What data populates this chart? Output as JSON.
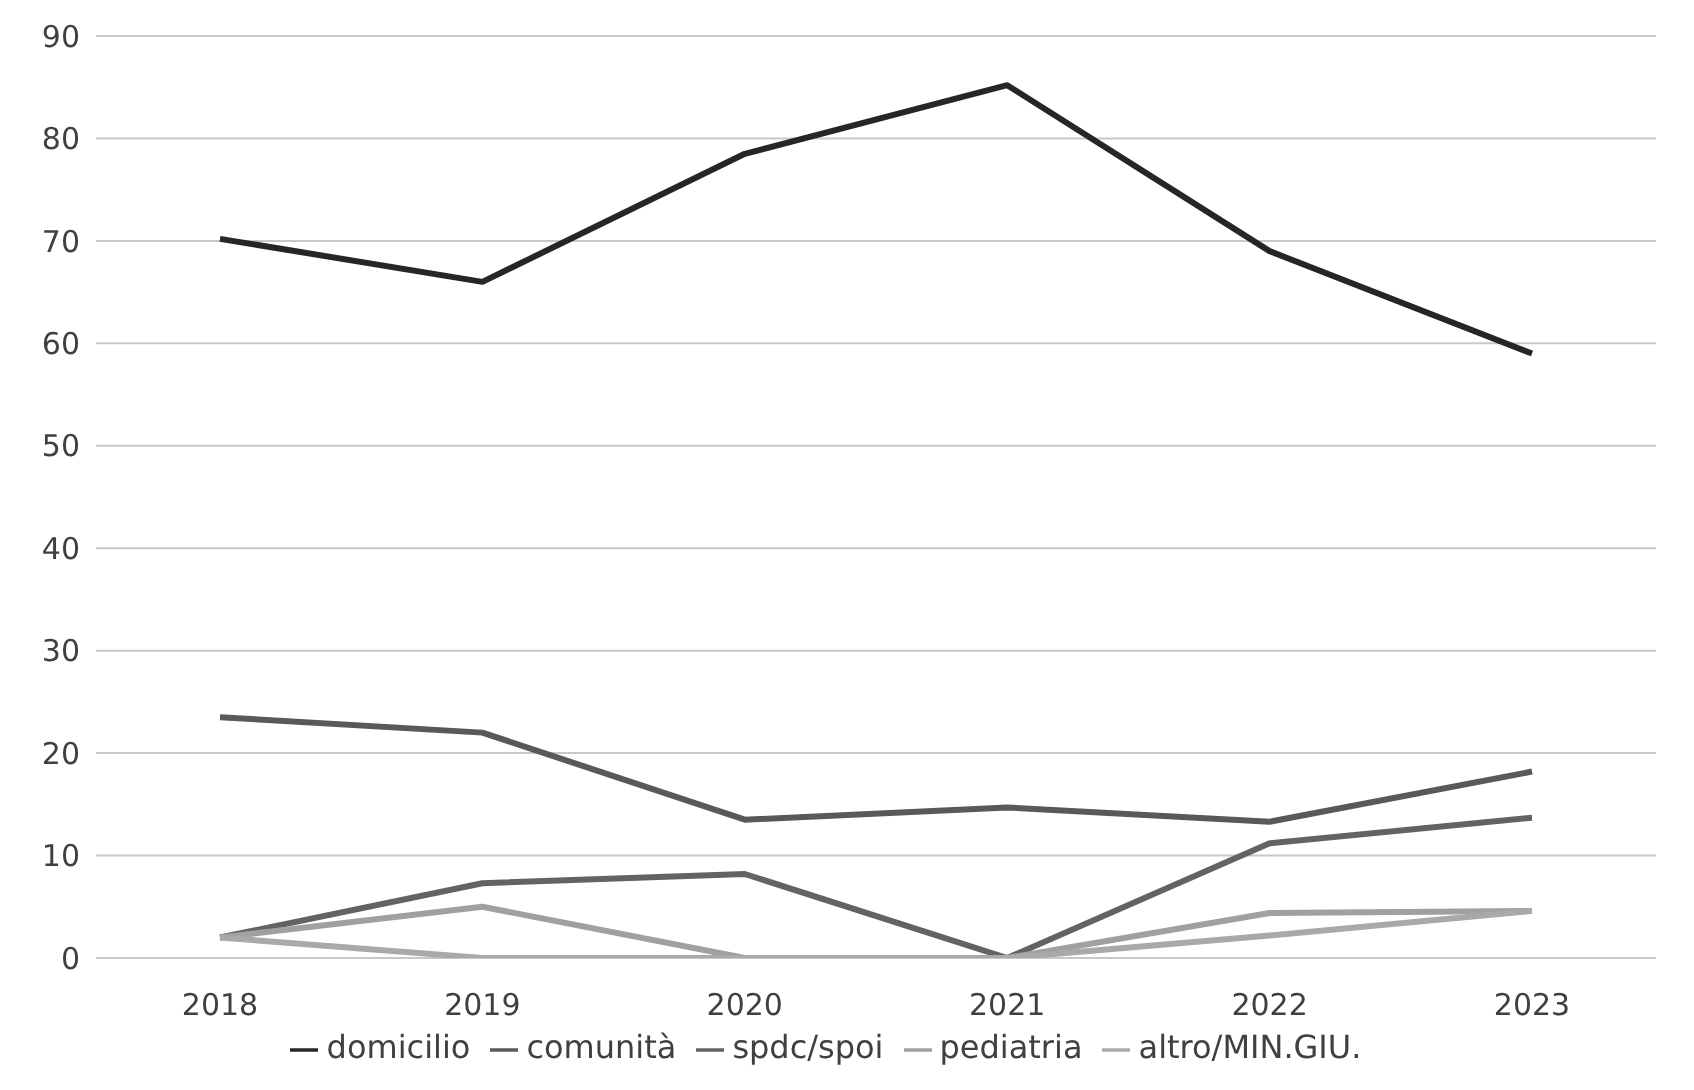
{
  "chart_data": {
    "type": "line",
    "categories": [
      "2018",
      "2019",
      "2020",
      "2021",
      "2022",
      "2023"
    ],
    "series": [
      {
        "name": "domicilio",
        "color": "#262626",
        "values": [
          70.2,
          66,
          78.5,
          85.2,
          69,
          59
        ]
      },
      {
        "name": "comunità",
        "color": "#595959",
        "values": [
          23.5,
          22,
          13.5,
          14.7,
          13.3,
          18.2
        ]
      },
      {
        "name": "spdc/spoi",
        "color": "#636363",
        "values": [
          2,
          7.3,
          8.2,
          0,
          11.2,
          13.7
        ]
      },
      {
        "name": "pediatria",
        "color": "#a0a0a0",
        "values": [
          2,
          5,
          0,
          0,
          4.4,
          4.6
        ]
      },
      {
        "name": "altro/MIN.GIU.",
        "color": "#a9a9a9",
        "values": [
          2,
          0,
          0,
          0,
          2.2,
          4.6
        ]
      }
    ],
    "ylim": [
      0,
      90
    ],
    "yticks": [
      0,
      10,
      20,
      30,
      40,
      50,
      60,
      70,
      80,
      90
    ],
    "grid": "y",
    "legend": "bottom",
    "marker": "none",
    "line_style": "solid"
  }
}
